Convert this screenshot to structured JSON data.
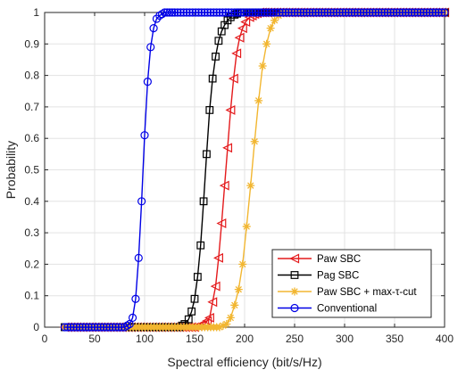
{
  "chart_data": {
    "type": "line",
    "title": "",
    "xlabel": "Spectral efficiency (bit/s/Hz)",
    "ylabel": "Probability",
    "xlim": [
      0,
      400
    ],
    "ylim": [
      0,
      1
    ],
    "xticks": [
      0,
      50,
      100,
      150,
      200,
      250,
      300,
      350,
      400
    ],
    "yticks": [
      0,
      0.1,
      0.2,
      0.3,
      0.4,
      0.5,
      0.6,
      0.7,
      0.8,
      0.9,
      1
    ],
    "grid": true,
    "legend_position": "bottom-right",
    "series": [
      {
        "name": "Paw SBC",
        "color": "#e41a1c",
        "marker": "triangle-left",
        "x": [
          20,
          150,
          160,
          165,
          168,
          171,
          174,
          177,
          180,
          183,
          186,
          189,
          192,
          195,
          198,
          201,
          205,
          210,
          215,
          220,
          400
        ],
        "y": [
          0,
          0,
          0.01,
          0.03,
          0.08,
          0.13,
          0.22,
          0.33,
          0.45,
          0.57,
          0.69,
          0.79,
          0.87,
          0.92,
          0.95,
          0.97,
          0.985,
          0.995,
          1,
          1,
          1
        ]
      },
      {
        "name": "Pag SBC",
        "color": "#000000",
        "marker": "square",
        "x": [
          20,
          135,
          140,
          144,
          147,
          150,
          153,
          156,
          159,
          162,
          165,
          168,
          171,
          174,
          177,
          180,
          183,
          186,
          190,
          195,
          200,
          400
        ],
        "y": [
          0,
          0,
          0.01,
          0.025,
          0.05,
          0.09,
          0.16,
          0.26,
          0.4,
          0.55,
          0.69,
          0.79,
          0.86,
          0.91,
          0.94,
          0.96,
          0.975,
          0.985,
          0.993,
          1,
          1,
          1
        ]
      },
      {
        "name": "Paw SBC + max-τ-cut",
        "color": "#f2b630",
        "marker": "asterisk",
        "x": [
          20,
          175,
          182,
          186,
          190,
          194,
          198,
          202,
          206,
          210,
          214,
          218,
          222,
          226,
          230,
          234,
          238,
          245,
          400
        ],
        "y": [
          0,
          0,
          0.01,
          0.03,
          0.07,
          0.12,
          0.2,
          0.32,
          0.45,
          0.59,
          0.72,
          0.83,
          0.9,
          0.95,
          0.975,
          0.99,
          1,
          1,
          1
        ]
      },
      {
        "name": "Conventional",
        "color": "#0000e6",
        "marker": "circle",
        "x": [
          20,
          80,
          85,
          88,
          91,
          94,
          97,
          100,
          103,
          106,
          109,
          112,
          115,
          120,
          125,
          130,
          400
        ],
        "y": [
          0,
          0,
          0.01,
          0.03,
          0.09,
          0.22,
          0.4,
          0.61,
          0.78,
          0.89,
          0.95,
          0.98,
          0.99,
          1,
          1,
          1,
          1
        ]
      }
    ]
  }
}
